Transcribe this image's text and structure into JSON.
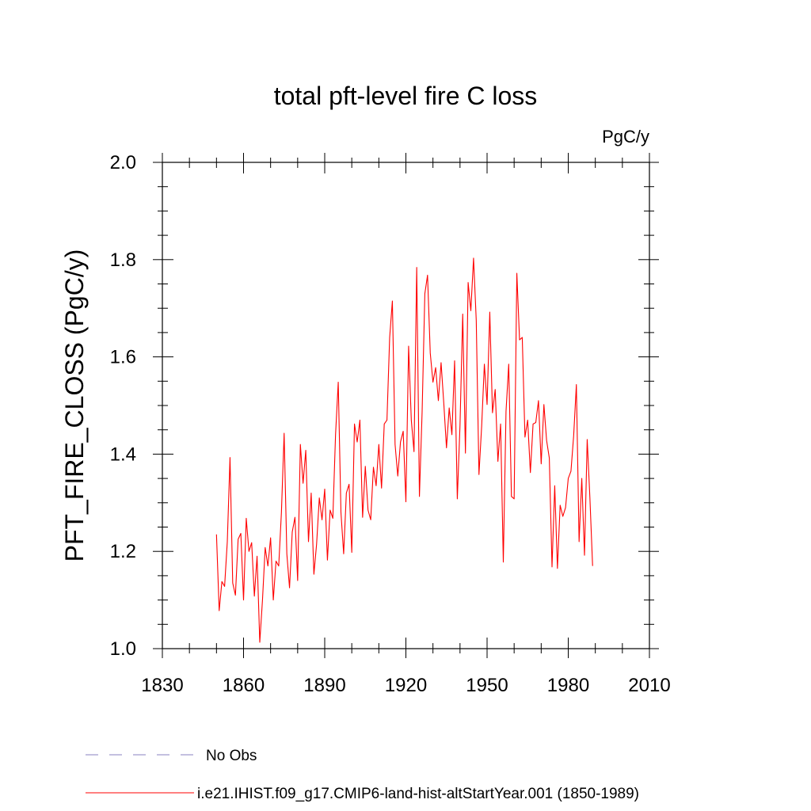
{
  "chart_data": {
    "type": "line",
    "title": "total pft-level fire C loss",
    "units": "PgC/y",
    "xlabel": "",
    "ylabel": "PFT_FIRE_CLOSS  (PgC/y)",
    "xlim": [
      1830,
      2010
    ],
    "ylim": [
      1.0,
      2.0
    ],
    "xticks": [
      1830,
      1860,
      1890,
      1920,
      1950,
      1980,
      2010
    ],
    "xtick_labels": [
      "1830",
      "1860",
      "1890",
      "1920",
      "1950",
      "1980",
      "2010"
    ],
    "yticks": [
      1.0,
      1.2,
      1.4,
      1.6,
      1.8,
      2.0
    ],
    "ytick_labels": [
      "1.0",
      "1.2",
      "1.4",
      "1.6",
      "1.8",
      "2.0"
    ],
    "grid": false,
    "legend_position": "bottom",
    "legend": [
      {
        "label": "No Obs",
        "color": "#8a80c0",
        "style": "dashed"
      },
      {
        "label": "i.e21.IHIST.f09_g17.CMIP6-land-hist-altStartYear.001 (1850-1989)",
        "color": "#ff0000",
        "style": "solid"
      }
    ],
    "series": [
      {
        "name": "i.e21.IHIST.f09_g17.CMIP6-land-hist-altStartYear.001 (1850-1989)",
        "color": "#ff0000",
        "x": [
          1850,
          1851,
          1852,
          1853,
          1854,
          1855,
          1856,
          1857,
          1858,
          1859,
          1860,
          1861,
          1862,
          1863,
          1864,
          1865,
          1866,
          1867,
          1868,
          1869,
          1870,
          1871,
          1872,
          1873,
          1874,
          1875,
          1876,
          1877,
          1878,
          1879,
          1880,
          1881,
          1882,
          1883,
          1884,
          1885,
          1886,
          1887,
          1888,
          1889,
          1890,
          1891,
          1892,
          1893,
          1894,
          1895,
          1896,
          1897,
          1898,
          1899,
          1900,
          1901,
          1902,
          1903,
          1904,
          1905,
          1906,
          1907,
          1908,
          1909,
          1910,
          1911,
          1912,
          1913,
          1914,
          1915,
          1916,
          1917,
          1918,
          1919,
          1920,
          1921,
          1922,
          1923,
          1924,
          1925,
          1926,
          1927,
          1928,
          1929,
          1930,
          1931,
          1932,
          1933,
          1934,
          1935,
          1936,
          1937,
          1938,
          1939,
          1940,
          1941,
          1942,
          1943,
          1944,
          1945,
          1946,
          1947,
          1948,
          1949,
          1950,
          1951,
          1952,
          1953,
          1954,
          1955,
          1956,
          1957,
          1958,
          1959,
          1960,
          1961,
          1962,
          1963,
          1964,
          1965,
          1966,
          1967,
          1968,
          1969,
          1970,
          1971,
          1972,
          1973,
          1974,
          1975,
          1976,
          1977,
          1978,
          1979,
          1980,
          1981,
          1982,
          1983,
          1984,
          1985,
          1986,
          1987,
          1988,
          1989
        ],
        "values": [
          1.235,
          1.078,
          1.138,
          1.128,
          1.22,
          1.393,
          1.135,
          1.11,
          1.225,
          1.237,
          1.1,
          1.268,
          1.2,
          1.218,
          1.108,
          1.19,
          1.013,
          1.1,
          1.208,
          1.17,
          1.228,
          1.1,
          1.18,
          1.17,
          1.28,
          1.443,
          1.195,
          1.125,
          1.24,
          1.27,
          1.14,
          1.42,
          1.34,
          1.408,
          1.22,
          1.32,
          1.153,
          1.215,
          1.31,
          1.265,
          1.328,
          1.182,
          1.285,
          1.268,
          1.44,
          1.548,
          1.28,
          1.195,
          1.32,
          1.338,
          1.198,
          1.462,
          1.425,
          1.47,
          1.27,
          1.375,
          1.285,
          1.265,
          1.373,
          1.335,
          1.42,
          1.33,
          1.462,
          1.47,
          1.64,
          1.715,
          1.42,
          1.355,
          1.425,
          1.447,
          1.302,
          1.622,
          1.47,
          1.405,
          1.784,
          1.313,
          1.488,
          1.73,
          1.768,
          1.608,
          1.548,
          1.578,
          1.51,
          1.588,
          1.505,
          1.413,
          1.495,
          1.44,
          1.592,
          1.308,
          1.46,
          1.688,
          1.402,
          1.753,
          1.695,
          1.803,
          1.675,
          1.358,
          1.458,
          1.585,
          1.502,
          1.692,
          1.485,
          1.533,
          1.385,
          1.462,
          1.178,
          1.488,
          1.585,
          1.313,
          1.308,
          1.772,
          1.635,
          1.64,
          1.435,
          1.47,
          1.362,
          1.462,
          1.465,
          1.51,
          1.38,
          1.502,
          1.428,
          1.392,
          1.168,
          1.335,
          1.165,
          1.295,
          1.272,
          1.29,
          1.35,
          1.365,
          1.438,
          1.543,
          1.22,
          1.35,
          1.192,
          1.43,
          1.31,
          1.17
        ]
      }
    ]
  }
}
